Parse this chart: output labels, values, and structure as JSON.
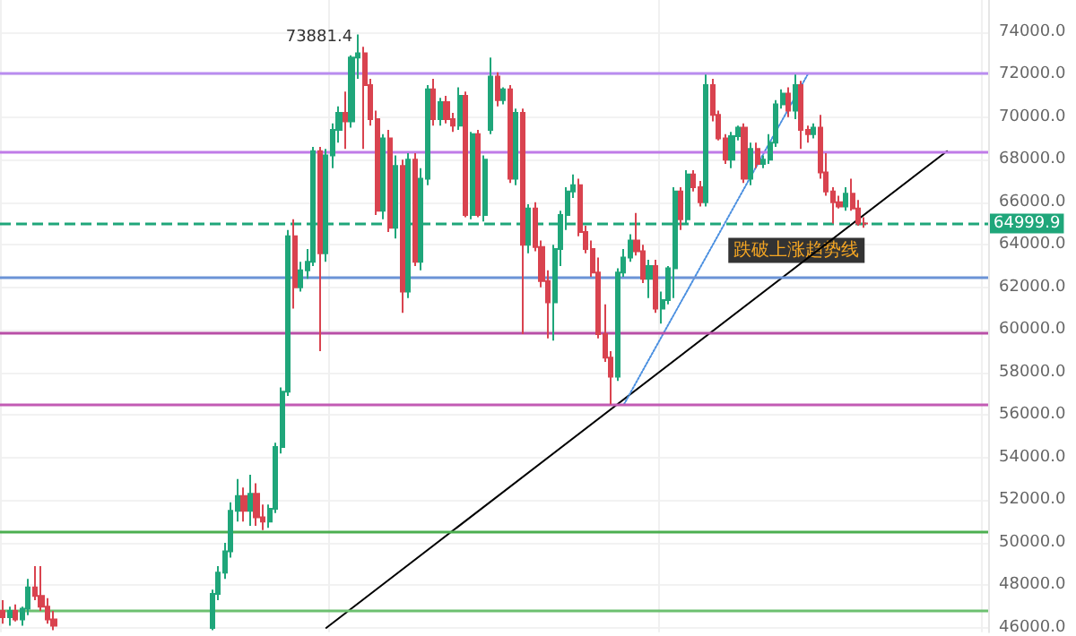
{
  "chart_data": {
    "type": "candlestick",
    "categories": [
      null,
      null,
      null,
      null,
      null,
      null,
      null,
      null,
      null,
      null,
      null,
      null,
      null,
      null,
      null,
      null,
      null,
      null,
      null,
      null,
      null,
      null,
      null,
      null,
      null,
      null,
      null,
      null,
      null,
      null,
      null,
      null,
      null,
      null,
      null,
      null,
      null,
      null,
      null,
      null,
      null,
      null,
      null,
      null,
      null,
      null,
      null,
      null,
      null,
      null,
      null,
      null,
      null,
      null,
      null,
      null,
      null,
      null,
      null,
      null,
      null,
      null,
      null,
      null,
      null,
      null,
      null,
      null,
      null,
      null,
      null,
      null,
      null,
      null,
      null,
      null,
      null,
      null,
      null,
      null,
      null,
      null,
      null,
      null,
      null,
      null,
      null,
      null,
      null,
      null,
      null,
      null,
      null,
      null,
      null,
      null,
      null,
      null,
      null,
      null,
      null,
      null,
      null,
      null,
      null,
      null,
      null,
      null,
      null,
      null,
      null,
      null,
      null,
      null,
      null,
      null,
      null,
      null,
      null,
      null,
      null,
      null,
      null,
      null,
      null,
      null,
      null,
      null,
      null,
      null,
      null,
      null,
      null,
      null,
      null,
      null,
      null,
      null,
      null,
      null,
      null,
      null,
      null,
      null,
      null,
      null,
      null,
      null,
      null,
      null,
      null,
      null,
      null,
      null,
      null,
      null
    ],
    "ohlc": [
      [
        46800,
        47300,
        46200,
        46500
      ],
      [
        46500,
        47000,
        46100,
        46800
      ],
      [
        46800,
        47100,
        46300,
        46400
      ],
      [
        46400,
        47000,
        46100,
        46900
      ],
      [
        46900,
        48300,
        46600,
        47900
      ],
      [
        47900,
        48900,
        47300,
        47500
      ],
      [
        47500,
        48900,
        46800,
        47000
      ],
      [
        47000,
        47400,
        46200,
        46400
      ],
      [
        46400,
        46800,
        45900,
        46100
      ],
      null,
      null,
      null,
      null,
      null,
      null,
      null,
      null,
      null,
      null,
      null,
      null,
      null,
      null,
      null,
      null,
      null,
      null,
      null,
      null,
      null,
      null,
      null,
      null,
      [
        46000,
        47800,
        45900,
        47600
      ],
      [
        47600,
        48900,
        47300,
        48600
      ],
      [
        48600,
        50000,
        48300,
        49600
      ],
      [
        49600,
        51900,
        49300,
        51500
      ],
      [
        51500,
        53000,
        51000,
        52200
      ],
      [
        52200,
        52600,
        51000,
        51500
      ],
      [
        51500,
        53200,
        50800,
        52300
      ],
      [
        52300,
        52800,
        50800,
        51200
      ],
      [
        51200,
        51800,
        50600,
        51000
      ],
      [
        51000,
        51800,
        50700,
        51600
      ],
      [
        51600,
        54700,
        51400,
        54500
      ],
      [
        54500,
        57300,
        54200,
        57100
      ],
      [
        57100,
        64700,
        56900,
        64400
      ],
      [
        64400,
        65200,
        61000,
        62000
      ],
      [
        62000,
        63200,
        61800,
        62800
      ],
      [
        62800,
        63800,
        62400,
        63200
      ],
      [
        63200,
        68600,
        63000,
        68400
      ],
      [
        68400,
        68600,
        59000,
        63600
      ],
      [
        63600,
        68500,
        63200,
        68200
      ],
      [
        68200,
        69700,
        67600,
        69400
      ],
      [
        69400,
        70500,
        68800,
        70200
      ],
      [
        70200,
        71200,
        68500,
        69800
      ],
      [
        69800,
        72900,
        69500,
        72800
      ],
      [
        72800,
        73881.4,
        71800,
        73000
      ],
      [
        73000,
        73300,
        68500,
        71500
      ],
      [
        71500,
        71800,
        69600,
        69900
      ],
      [
        69900,
        70300,
        65400,
        65600
      ],
      [
        65600,
        69200,
        65200,
        69000
      ],
      [
        69000,
        69400,
        64600,
        64800
      ],
      [
        64800,
        68200,
        64300,
        67700
      ],
      [
        67700,
        68000,
        60800,
        61800
      ],
      [
        61800,
        68300,
        61500,
        68000
      ],
      [
        68000,
        68300,
        63000,
        63200
      ],
      [
        63200,
        67600,
        62800,
        67100
      ],
      [
        67100,
        71500,
        66800,
        71300
      ],
      [
        71300,
        71800,
        69600,
        69900
      ],
      [
        69900,
        70900,
        69600,
        70700
      ],
      [
        70700,
        71000,
        69700,
        69900
      ],
      [
        69900,
        70200,
        69300,
        69600
      ],
      [
        69600,
        71400,
        69400,
        71000
      ],
      [
        71000,
        71200,
        65300,
        65400
      ],
      [
        65400,
        69300,
        65200,
        69200
      ],
      [
        69200,
        69400,
        65300,
        65400
      ],
      [
        65400,
        68200,
        65100,
        68000
      ],
      [
        69400,
        72800,
        69200,
        71900
      ],
      [
        71900,
        72100,
        70500,
        70800
      ],
      [
        70800,
        71400,
        70600,
        71300
      ],
      [
        71300,
        71500,
        66900,
        67100
      ],
      [
        67100,
        70400,
        66800,
        70200
      ],
      [
        70200,
        70400,
        59800,
        64000
      ],
      [
        64000,
        65900,
        63600,
        65700
      ],
      [
        65700,
        66000,
        63700,
        63900
      ],
      [
        63900,
        64200,
        62000,
        62300
      ],
      [
        62300,
        62800,
        59600,
        61300
      ],
      [
        61300,
        64000,
        59500,
        63800
      ],
      [
        63800,
        65600,
        63000,
        65400
      ],
      [
        65400,
        66700,
        64700,
        66500
      ],
      [
        66500,
        67300,
        66200,
        66800
      ],
      [
        66800,
        67100,
        64400,
        64600
      ],
      [
        64600,
        64900,
        63600,
        63800
      ],
      [
        63800,
        64200,
        62500,
        62700
      ],
      [
        62700,
        63400,
        59600,
        59800
      ],
      [
        59800,
        61200,
        58500,
        58700
      ],
      [
        58700,
        59000,
        56500,
        57800
      ],
      [
        57800,
        62900,
        57600,
        62700
      ],
      [
        62700,
        63800,
        62500,
        63400
      ],
      [
        63400,
        64500,
        63200,
        64200
      ],
      [
        64200,
        65500,
        63500,
        63700
      ],
      [
        63700,
        64000,
        62200,
        62400
      ],
      [
        62400,
        63300,
        61500,
        63000
      ],
      [
        63000,
        63300,
        60800,
        61000
      ],
      [
        61000,
        61800,
        60300,
        61400
      ],
      [
        61400,
        63000,
        61200,
        62900
      ],
      [
        62900,
        66700,
        61500,
        66500
      ],
      [
        66500,
        66700,
        64700,
        65200
      ],
      [
        65200,
        67500,
        65000,
        67300
      ],
      [
        67300,
        67500,
        66500,
        66700
      ],
      [
        66700,
        67000,
        65800,
        66000
      ],
      [
        66000,
        72000,
        65800,
        71500
      ],
      [
        71500,
        71800,
        69800,
        70100
      ],
      [
        70100,
        70300,
        68900,
        69000
      ],
      [
        69000,
        69200,
        67800,
        68000
      ],
      [
        68000,
        69300,
        67600,
        69100
      ],
      [
        69100,
        69600,
        68900,
        69500
      ],
      [
        69500,
        69700,
        66900,
        67100
      ],
      [
        67100,
        68800,
        66800,
        68500
      ],
      [
        68500,
        68800,
        67600,
        67800
      ],
      [
        67800,
        68200,
        67600,
        68000
      ],
      [
        68000,
        69200,
        67800,
        68800
      ],
      [
        68800,
        70800,
        68600,
        70600
      ],
      [
        70600,
        71300,
        70400,
        71100
      ],
      [
        71100,
        71400,
        70000,
        70300
      ],
      [
        70300,
        72000,
        69900,
        71500
      ],
      [
        71500,
        71700,
        68500,
        69400
      ],
      [
        69400,
        69600,
        68800,
        69200
      ],
      [
        69200,
        69700,
        69000,
        69500
      ],
      [
        69500,
        70100,
        67100,
        67400
      ],
      [
        67400,
        68300,
        66300,
        66500
      ],
      [
        66500,
        66700,
        65000,
        66000
      ],
      [
        66000,
        66300,
        65700,
        65800
      ],
      [
        65800,
        66700,
        65600,
        66400
      ],
      [
        66400,
        67100,
        65600,
        65700
      ],
      [
        65700,
        66100,
        64900,
        65000
      ],
      [
        65000,
        65300,
        64800,
        64999.9
      ],
      null,
      null,
      null,
      null,
      null,
      null,
      null,
      null,
      null,
      null,
      null,
      null,
      null,
      null,
      null,
      null,
      null,
      null,
      null
    ],
    "series": [
      {
        "type": "line",
        "color": "#000000",
        "line_style": "solid",
        "values": [
          null,
          null,
          null,
          null,
          null,
          null,
          null,
          null,
          null,
          null,
          null,
          null,
          null,
          null,
          null,
          null,
          null,
          null,
          null,
          null,
          null,
          null,
          null,
          null,
          null,
          null,
          null,
          null,
          null,
          null,
          null,
          null,
          null,
          null,
          null,
          null,
          null,
          null,
          null,
          null,
          null,
          null,
          null,
          null,
          null,
          null,
          null,
          null,
          null,
          null,
          null,
          46000,
          null,
          null,
          null,
          null,
          null,
          null,
          null,
          null,
          null,
          null,
          null,
          null,
          null,
          null,
          null,
          null,
          null,
          null,
          null,
          null,
          null,
          null,
          null,
          null,
          null,
          null,
          null,
          null,
          null,
          null,
          null,
          null,
          null,
          null,
          null,
          null,
          null,
          null,
          null,
          null,
          null,
          null,
          null,
          null,
          null,
          null,
          null,
          null,
          null,
          null,
          null,
          null,
          null,
          null,
          null,
          null,
          null,
          null,
          null,
          null,
          null,
          null,
          null,
          null,
          null,
          null,
          null,
          null,
          null,
          null,
          null,
          null,
          null,
          null,
          null,
          null,
          null,
          null,
          null,
          null,
          null,
          null,
          null,
          null,
          null,
          null,
          null,
          null,
          null,
          null,
          null,
          null,
          null,
          null,
          null,
          null,
          null,
          68400,
          null,
          null,
          null,
          null,
          null,
          null
        ]
      },
      {
        "type": "line",
        "color": "#4a8fe0",
        "line_style": "dotted",
        "values": [
          null,
          null,
          null,
          null,
          null,
          null,
          null,
          null,
          null,
          null,
          null,
          null,
          null,
          null,
          null,
          null,
          null,
          null,
          null,
          null,
          null,
          null,
          null,
          null,
          null,
          null,
          null,
          null,
          null,
          null,
          null,
          null,
          null,
          null,
          null,
          null,
          null,
          null,
          null,
          null,
          null,
          null,
          null,
          null,
          null,
          null,
          null,
          null,
          null,
          null,
          null,
          null,
          null,
          null,
          null,
          null,
          null,
          null,
          null,
          null,
          null,
          null,
          null,
          null,
          null,
          null,
          null,
          null,
          null,
          null,
          null,
          null,
          null,
          null,
          null,
          null,
          null,
          null,
          null,
          null,
          null,
          null,
          null,
          null,
          null,
          null,
          null,
          null,
          null,
          null,
          null,
          null,
          null,
          null,
          null,
          null,
          null,
          null,
          56500,
          null,
          null,
          null,
          null,
          null,
          null,
          null,
          null,
          null,
          null,
          null,
          null,
          null,
          null,
          null,
          null,
          null,
          null,
          null,
          null,
          null,
          null,
          null,
          null,
          null,
          null,
          null,
          null,
          72000,
          null,
          null,
          null,
          null,
          null,
          null,
          null,
          null,
          null,
          null,
          null,
          null,
          null,
          null,
          null,
          null,
          null,
          null,
          null,
          null,
          null,
          null,
          null,
          null,
          null,
          null,
          null,
          null
        ]
      }
    ],
    "ref_lines": [
      {
        "axis": "y",
        "value": 72050,
        "color": "#b98cf0",
        "line_style": "solid"
      },
      {
        "axis": "y",
        "value": 68400,
        "color": "#c07be8",
        "line_style": "solid"
      },
      {
        "axis": "y",
        "value": 64999.9,
        "label": "64999.9",
        "color": "#1fa67a",
        "line_style": "dashed"
      },
      {
        "axis": "y",
        "value": 62500,
        "color": "#6b93d6",
        "line_style": "solid"
      },
      {
        "axis": "y",
        "value": 59900,
        "color": "#b84fa6",
        "line_style": "solid"
      },
      {
        "axis": "y",
        "value": 56500,
        "color": "#c25bb4",
        "line_style": "solid"
      },
      {
        "axis": "y",
        "value": 50500,
        "color": "#4caf50",
        "line_style": "solid"
      },
      {
        "axis": "y",
        "value": 46800,
        "color": "#6cc070",
        "line_style": "solid"
      }
    ],
    "annotations": [
      "73881.4",
      "跌破上涨趋势线"
    ],
    "ylim": [
      45800,
      75500
    ],
    "yticks": [
      {
        "value": 46000,
        "label": "46000.0"
      },
      {
        "value": 48000,
        "label": "48000.0"
      },
      {
        "value": 50000,
        "label": "50000.0"
      },
      {
        "value": 52000,
        "label": "52000.0"
      },
      {
        "value": 54000,
        "label": "54000.0"
      },
      {
        "value": 56000,
        "label": "56000.0"
      },
      {
        "value": 58000,
        "label": "58000.0"
      },
      {
        "value": 60000,
        "label": "60000.0"
      },
      {
        "value": 62000,
        "label": "62000.0"
      },
      {
        "value": 64000,
        "label": "64000.0"
      },
      {
        "value": 66000,
        "label": "66000.0"
      },
      {
        "value": 68000,
        "label": "68000.0"
      },
      {
        "value": 70000,
        "label": "70000.0"
      },
      {
        "value": 72000,
        "label": "72000.0"
      },
      {
        "value": 74000,
        "label": "74000.0"
      }
    ],
    "tick_labels": "y",
    "grid": true
  }
}
